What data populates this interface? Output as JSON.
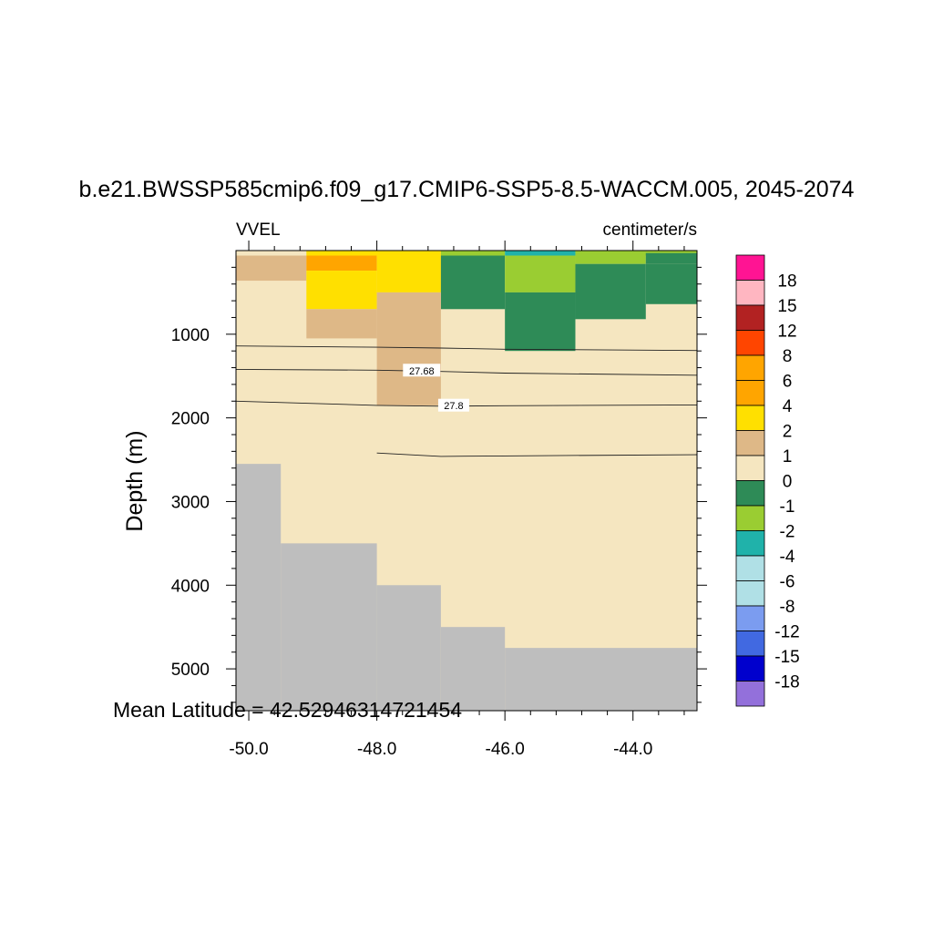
{
  "chart_data": {
    "type": "heatmap",
    "title": "b.e21.BWSSP585cmip6.f09_g17.CMIP6-SSP5-8.5-WACCM.005, 2045-2074",
    "left_label": "VVEL",
    "right_label": "centimeter/s",
    "ylabel": "Depth (m)",
    "xlabel": "",
    "footer": "Mean Latitude = 42.52946314721454",
    "xlim": [
      -50.2,
      -43.0
    ],
    "ylim_depth": [
      0,
      5500
    ],
    "x_ticks": [
      "-50.0",
      "-48.0",
      "-46.0",
      "-44.0"
    ],
    "x_tick_values": [
      -50,
      -48,
      -46,
      -44
    ],
    "y_ticks": [
      "1000",
      "2000",
      "3000",
      "4000",
      "5000"
    ],
    "y_tick_values": [
      1000,
      2000,
      3000,
      4000,
      5000
    ],
    "colorbar": {
      "labels": [
        "18",
        "15",
        "12",
        "8",
        "6",
        "4",
        "2",
        "1",
        "0",
        "-1",
        "-2",
        "-4",
        "-6",
        "-8",
        "-12",
        "-15",
        "-18"
      ],
      "colors": [
        "#ff1493",
        "#ffb6c1",
        "#b22222",
        "#ff4500",
        "#ffa500",
        "#ffa500",
        "#ffe000",
        "#deb887",
        "#f5e6c0",
        "#2e8b57",
        "#9acd32",
        "#20b2aa",
        "#b0e0e6",
        "#b0e0e6",
        "#7b9cf0",
        "#4169e1",
        "#0000cd",
        "#9370db"
      ]
    },
    "cells": [
      {
        "lon": [
          -50.2,
          -49.1
        ],
        "depth": [
          0,
          60
        ],
        "color": "#f5e6c0"
      },
      {
        "lon": [
          -49.1,
          -47.0
        ],
        "depth": [
          0,
          60
        ],
        "color": "#ffe000"
      },
      {
        "lon": [
          -47.0,
          -46.0
        ],
        "depth": [
          0,
          60
        ],
        "color": "#9acd32"
      },
      {
        "lon": [
          -46.0,
          -44.9
        ],
        "depth": [
          0,
          60
        ],
        "color": "#20b2aa"
      },
      {
        "lon": [
          -44.9,
          -43.0
        ],
        "depth": [
          0,
          60
        ],
        "color": "#9acd32"
      },
      {
        "lon": [
          -50.2,
          -49.1
        ],
        "depth": [
          60,
          360
        ],
        "color": "#deb887"
      },
      {
        "lon": [
          -49.1,
          -48.0
        ],
        "depth": [
          60,
          240
        ],
        "color": "#ffa500"
      },
      {
        "lon": [
          -49.1,
          -48.0
        ],
        "depth": [
          240,
          700
        ],
        "color": "#ffe000"
      },
      {
        "lon": [
          -48.0,
          -47.0
        ],
        "depth": [
          60,
          500
        ],
        "color": "#ffe000"
      },
      {
        "lon": [
          -47.0,
          -46.0
        ],
        "depth": [
          60,
          700
        ],
        "color": "#2e8b57"
      },
      {
        "lon": [
          -46.0,
          -44.9
        ],
        "depth": [
          60,
          500
        ],
        "color": "#9acd32"
      },
      {
        "lon": [
          -44.9,
          -43.8
        ],
        "depth": [
          60,
          160
        ],
        "color": "#9acd32"
      },
      {
        "lon": [
          -43.8,
          -43.0
        ],
        "depth": [
          30,
          160
        ],
        "color": "#2e8b57"
      },
      {
        "lon": [
          -44.9,
          -43.8
        ],
        "depth": [
          160,
          820
        ],
        "color": "#2e8b57"
      },
      {
        "lon": [
          -43.8,
          -43.0
        ],
        "depth": [
          160,
          640
        ],
        "color": "#2e8b57"
      },
      {
        "lon": [
          -46.0,
          -44.9
        ],
        "depth": [
          500,
          1200
        ],
        "color": "#2e8b57"
      },
      {
        "lon": [
          -49.1,
          -48.0
        ],
        "depth": [
          700,
          1050
        ],
        "color": "#deb887"
      },
      {
        "lon": [
          -48.0,
          -47.0
        ],
        "depth": [
          500,
          1850
        ],
        "color": "#deb887"
      }
    ],
    "land_boundary": [
      {
        "lon": [
          -50.2,
          -49.5
        ],
        "depth": 2550
      },
      {
        "lon": [
          -49.5,
          -48.0
        ],
        "depth": 3500
      },
      {
        "lon": [
          -48.0,
          -47.0
        ],
        "depth": 4000
      },
      {
        "lon": [
          -47.0,
          -46.0
        ],
        "depth": 4500
      },
      {
        "lon": [
          -46.0,
          -43.0
        ],
        "depth": 4750
      }
    ],
    "contours": [
      {
        "label": "",
        "lon": [
          -50.2,
          -48.0,
          -47.0,
          -46.0,
          -43.0
        ],
        "depth": [
          1140,
          1155,
          1165,
          1180,
          1195
        ]
      },
      {
        "label": "27.68",
        "label_lon": -47.3,
        "lon": [
          -50.2,
          -48.0,
          -47.0,
          -46.0,
          -43.0
        ],
        "depth": [
          1420,
          1430,
          1445,
          1465,
          1490
        ]
      },
      {
        "label": "27.8",
        "label_lon": -46.8,
        "lon": [
          -50.2,
          -48.0,
          -47.0,
          -46.0,
          -43.0
        ],
        "depth": [
          1800,
          1850,
          1860,
          1855,
          1845
        ]
      },
      {
        "label": "",
        "lon": [
          -48.0,
          -47.0,
          -46.0,
          -43.0
        ],
        "depth": [
          2420,
          2460,
          2455,
          2440
        ]
      }
    ],
    "contour_labels": [
      "27.68",
      "27.8"
    ]
  }
}
